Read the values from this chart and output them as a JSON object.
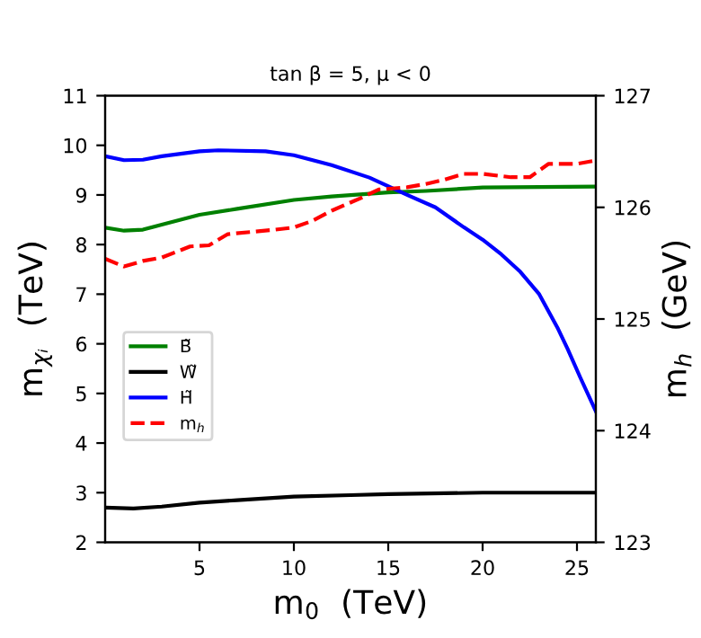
{
  "chart_data": {
    "type": "line",
    "title": "tan β = 5, μ < 0",
    "xlabel": "m$_{0}$  (TeV)",
    "ylabel": "m$_{χᵢ}$  (TeV)",
    "y2label": "m$_{h}$  (GeV)",
    "xlim": [
      0,
      26
    ],
    "xticks": [
      5,
      10,
      15,
      20,
      25
    ],
    "ylim": [
      2,
      11
    ],
    "yticks": [
      2,
      3,
      4,
      5,
      6,
      7,
      8,
      9,
      10,
      11
    ],
    "y2lim": [
      123,
      127
    ],
    "y2ticks": [
      123,
      124,
      125,
      126,
      127
    ],
    "legend": "center left",
    "grid": false,
    "marker": "none",
    "series": [
      {
        "name": "B̃",
        "color": "#008000",
        "line_style": "solid",
        "x": [
          0,
          1,
          2,
          3,
          5,
          7,
          10,
          12,
          15,
          17,
          20,
          23,
          26
        ],
        "values": [
          8.34,
          8.28,
          8.3,
          8.4,
          8.6,
          8.72,
          8.9,
          8.97,
          9.05,
          9.08,
          9.15,
          9.16,
          9.17
        ]
      },
      {
        "name": "W̃",
        "color": "#000000",
        "line_style": "solid",
        "x": [
          0,
          1.5,
          3,
          5,
          7,
          10,
          13,
          15,
          20,
          23,
          26
        ],
        "values": [
          2.7,
          2.68,
          2.72,
          2.8,
          2.85,
          2.92,
          2.95,
          2.97,
          3.0,
          3.0,
          3.0
        ]
      },
      {
        "name": "H̃",
        "color": "#0000ff",
        "line_style": "solid",
        "x": [
          0,
          1,
          2,
          3,
          5,
          6,
          8.5,
          10,
          12,
          14,
          16,
          17.5,
          19,
          20,
          21,
          22,
          23,
          23.5,
          24,
          24.5,
          25.2,
          26
        ],
        "values": [
          9.78,
          9.7,
          9.71,
          9.78,
          9.88,
          9.9,
          9.88,
          9.8,
          9.6,
          9.35,
          9.0,
          8.75,
          8.35,
          8.1,
          7.8,
          7.45,
          7.0,
          6.65,
          6.3,
          5.9,
          5.3,
          4.64
        ]
      },
      {
        "name": "m$_{h}$",
        "color": "#ff0000",
        "line_style": "dashed",
        "axis": "y2",
        "x": [
          0,
          1,
          2,
          3,
          4.5,
          5.5,
          6.5,
          9,
          10,
          11,
          12,
          13.5,
          14.5,
          16,
          17,
          18,
          19,
          20,
          21.5,
          22.5,
          23.5,
          25,
          26
        ],
        "values": [
          125.54,
          125.47,
          125.52,
          125.55,
          125.65,
          125.66,
          125.76,
          125.8,
          125.82,
          125.88,
          125.97,
          126.08,
          126.16,
          126.18,
          126.21,
          126.25,
          126.3,
          126.3,
          126.27,
          126.27,
          126.39,
          126.39,
          126.42
        ]
      }
    ]
  }
}
